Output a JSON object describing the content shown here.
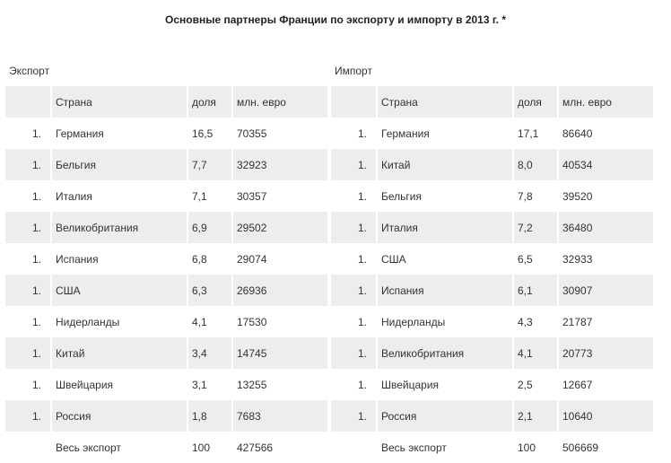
{
  "title": "Основные партнеры Франции по экспорту и импорту в 2013 г. *",
  "export": {
    "label": "Экспорт",
    "headers": {
      "country": "Страна",
      "share": "доля",
      "value": "млн. евро"
    },
    "rows": [
      {
        "num": "1.",
        "country": "Германия",
        "share": "16,5",
        "value": "70355"
      },
      {
        "num": "1.",
        "country": "Бельгия",
        "share": "7,7",
        "value": "32923"
      },
      {
        "num": "1.",
        "country": "Италия",
        "share": "7,1",
        "value": "30357"
      },
      {
        "num": "1.",
        "country": "Великобритания",
        "share": "6,9",
        "value": "29502"
      },
      {
        "num": "1.",
        "country": "Испания",
        "share": "6,8",
        "value": "29074"
      },
      {
        "num": "1.",
        "country": "США",
        "share": "6,3",
        "value": "26936"
      },
      {
        "num": "1.",
        "country": "Нидерланды",
        "share": "4,1",
        "value": "17530"
      },
      {
        "num": "1.",
        "country": "Китай",
        "share": "3,4",
        "value": "14745"
      },
      {
        "num": "1.",
        "country": "Швейцария",
        "share": "3,1",
        "value": "13255"
      },
      {
        "num": "1.",
        "country": "Россия",
        "share": "1,8",
        "value": "7683"
      }
    ],
    "total": {
      "label": "Весь экспорт",
      "share": "100",
      "value": "427566"
    }
  },
  "import": {
    "label": "Импорт",
    "headers": {
      "country": "Страна",
      "share": "доля",
      "value": "млн. евро"
    },
    "rows": [
      {
        "num": "1.",
        "country": "Германия",
        "share": "17,1",
        "value": "86640"
      },
      {
        "num": "1.",
        "country": "Китай",
        "share": "8,0",
        "value": "40534"
      },
      {
        "num": "1.",
        "country": "Бельгия",
        "share": "7,8",
        "value": "39520"
      },
      {
        "num": "1.",
        "country": "Италия",
        "share": "7,2",
        "value": "36480"
      },
      {
        "num": "1.",
        "country": "США",
        "share": "6,5",
        "value": "32933"
      },
      {
        "num": "1.",
        "country": "Испания",
        "share": "6,1",
        "value": "30907"
      },
      {
        "num": "1.",
        "country": "Нидерланды",
        "share": "4,3",
        "value": "21787"
      },
      {
        "num": "1.",
        "country": "Великобритания",
        "share": "4,1",
        "value": "20773"
      },
      {
        "num": "1.",
        "country": "Швейцария",
        "share": "2,5",
        "value": "12667"
      },
      {
        "num": "1.",
        "country": "Россия",
        "share": "2,1",
        "value": "10640"
      }
    ],
    "total": {
      "label": "Весь экспорт",
      "share": "100",
      "value": "506669"
    }
  }
}
